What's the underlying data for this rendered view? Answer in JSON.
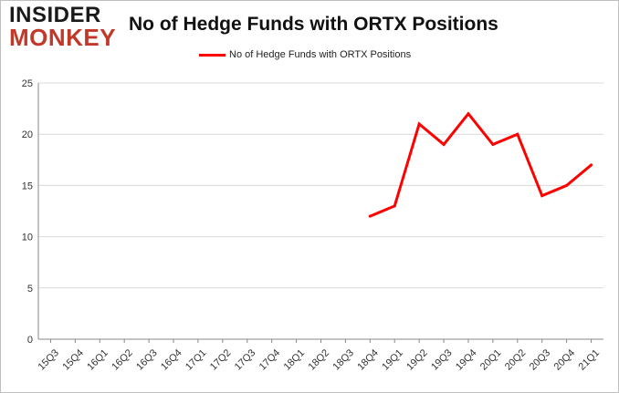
{
  "logo": {
    "line1": "INSIDER",
    "line2": "MONKEY"
  },
  "colors": {
    "series": "#ff0000",
    "grid": "#d9d9d9",
    "axis": "#888888"
  },
  "chart_data": {
    "type": "line",
    "title": "No of Hedge Funds with ORTX Positions",
    "xlabel": "",
    "ylabel": "",
    "ylim": [
      0,
      25
    ],
    "yticks": [
      0,
      5,
      10,
      15,
      20,
      25
    ],
    "grid": true,
    "legend_position": "top",
    "categories": [
      "15Q3",
      "15Q4",
      "16Q1",
      "16Q2",
      "16Q3",
      "16Q4",
      "17Q1",
      "17Q2",
      "17Q3",
      "17Q4",
      "18Q1",
      "18Q2",
      "18Q3",
      "18Q4",
      "19Q1",
      "19Q2",
      "19Q3",
      "19Q4",
      "20Q1",
      "20Q2",
      "20Q3",
      "20Q4",
      "21Q1"
    ],
    "series": [
      {
        "name": "No of Hedge Funds with ORTX Positions",
        "values": [
          null,
          null,
          null,
          null,
          null,
          null,
          null,
          null,
          null,
          null,
          null,
          null,
          null,
          12,
          13,
          21,
          19,
          22,
          19,
          20,
          14,
          15,
          17
        ]
      }
    ]
  }
}
